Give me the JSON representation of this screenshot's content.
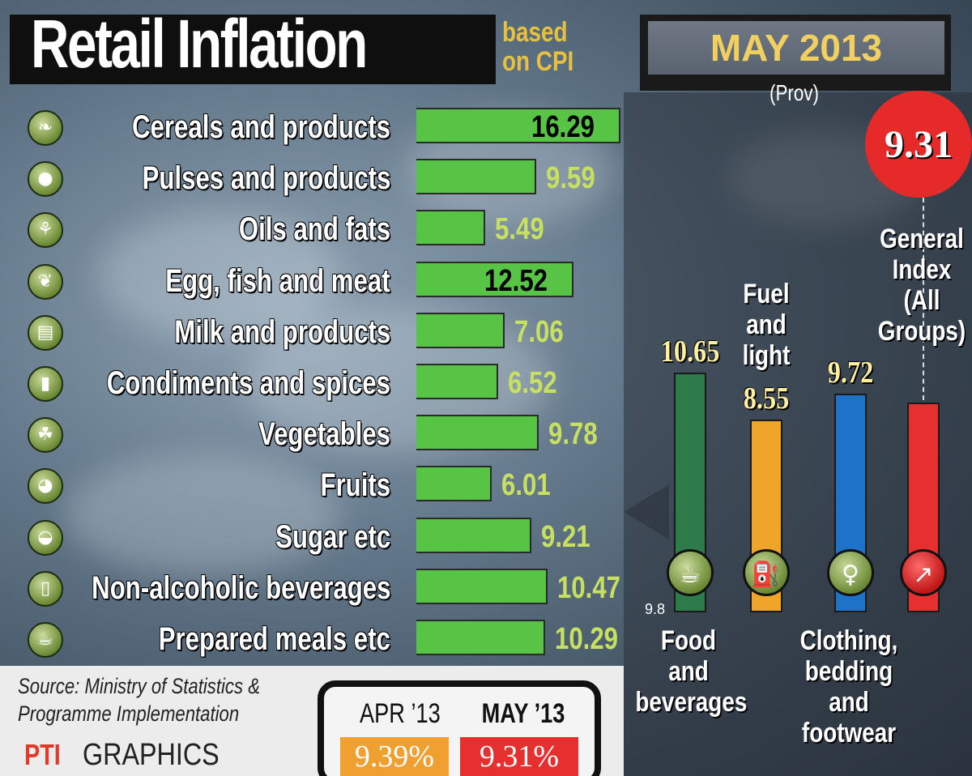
{
  "header": {
    "title": "Retail Inflation",
    "subtitle_line1": "based",
    "subtitle_line2": "on CPI",
    "month": "MAY 2013",
    "prov": "(Prov)"
  },
  "colors": {
    "bar_green": "#58c445",
    "food": "#2f7a4a",
    "fuel": "#f0a52a",
    "clothing": "#1e72c8",
    "general": "#e63030"
  },
  "chart_data": [
    {
      "type": "bar",
      "orientation": "horizontal",
      "categories": [
        "Cereals and products",
        "Pulses and products",
        "Oils and fats",
        "Egg, fish and meat",
        "Milk and products",
        "Condiments and spices",
        "Vegetables",
        "Fruits",
        "Sugar etc",
        "Non-alcoholic beverages",
        "Prepared meals etc"
      ],
      "values": [
        16.29,
        9.59,
        5.49,
        12.52,
        7.06,
        6.52,
        9.78,
        6.01,
        9.21,
        10.47,
        10.29
      ],
      "value_labels": [
        "16.29",
        "9.59",
        "5.49",
        "12.52",
        "7.06",
        "6.52",
        "9.78",
        "6.01",
        "9.21",
        "10.47",
        "10.29"
      ],
      "icons": [
        "wheat-icon",
        "pulses-icon",
        "oil-icon",
        "meat-icon",
        "milk-icon",
        "spices-icon",
        "vegetables-icon",
        "fruits-icon",
        "sugar-icon",
        "beverage-can-icon",
        "meal-icon"
      ],
      "xlim": [
        0,
        16.29
      ]
    },
    {
      "type": "bar",
      "orientation": "vertical",
      "categories": [
        "Food and beverages",
        "Fuel and light",
        "Clothing, bedding and footwear",
        "General Index (All Groups)"
      ],
      "values": [
        10.65,
        8.55,
        9.72,
        9.31
      ],
      "value_labels": [
        "10.65",
        "8.55",
        "9.72",
        "9.31"
      ],
      "label_lines": [
        [
          "Food",
          "and",
          "beverages"
        ],
        [
          "Fuel",
          "and",
          "light"
        ],
        [
          "Clothing,",
          "bedding",
          "and",
          "footwear"
        ],
        [
          "General",
          "Index",
          "(All",
          "Groups)"
        ]
      ],
      "icons": [
        "tea-cup-icon",
        "fuel-nozzle-icon",
        "shirt-icon",
        "rising-chart-icon"
      ],
      "colors": [
        "#2f7a4a",
        "#f0a52a",
        "#1e72c8",
        "#e63030"
      ],
      "ylim": [
        0,
        10.65
      ],
      "axis_tick": "9.8"
    }
  ],
  "footer": {
    "source_line1": "Source: Ministry of Statistics &",
    "source_line2": "Programme Implementation",
    "logo": "PTI",
    "graphics": "GRAPHICS",
    "apr_label": "APR ’13",
    "may_label": "MAY ’13",
    "apr_value": "9.39%",
    "may_value": "9.31%"
  }
}
